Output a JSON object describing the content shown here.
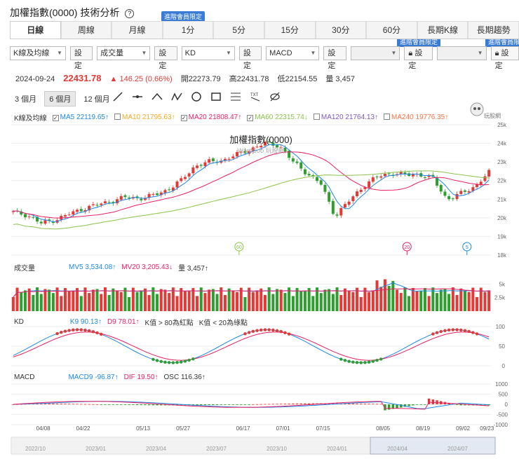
{
  "header": {
    "title": "加權指數(0000) 技術分析",
    "help_icon": "?",
    "member_badge": "進階會員限定"
  },
  "tabs": [
    {
      "label": "日線",
      "active": true
    },
    {
      "label": "周線"
    },
    {
      "label": "月線"
    },
    {
      "label": "1分"
    },
    {
      "label": "5分"
    },
    {
      "label": "15分"
    },
    {
      "label": "30分"
    },
    {
      "label": "60分"
    },
    {
      "label": "長期K線"
    },
    {
      "label": "長期趨勢"
    }
  ],
  "controls": [
    {
      "select": "K線及均線",
      "button": "設定"
    },
    {
      "select": "成交量",
      "button": "設定"
    },
    {
      "select": "KD",
      "button": "設定"
    },
    {
      "select": "MACD",
      "button": "設定"
    },
    {
      "select": "",
      "button": "設定",
      "locked": true
    },
    {
      "select": "",
      "button": "設定",
      "locked": true
    }
  ],
  "quote": {
    "date": "2024-09-24",
    "price": "22431.78",
    "change": "▲ 146.25 (0.66%)",
    "open_label": "開",
    "open": "22273.79",
    "high_label": "高",
    "high": "22431.78",
    "low_label": "低",
    "low": "22154.55",
    "vol_label": "量",
    "vol": "3,457"
  },
  "ranges": [
    "3 個月",
    "6 個月",
    "12 個月"
  ],
  "tool_icons": [
    "line-tool-icon",
    "hline-tool-icon",
    "angle-tool-icon",
    "zigzag-tool-icon",
    "circle-tool-icon",
    "rect-tool-icon",
    "fib-tool-icon",
    "text-tool-icon",
    "hide-tool-icon"
  ],
  "text_tool": "TXT",
  "ma_legend": {
    "title": "K線及均線",
    "items": [
      {
        "label": "MA5",
        "value": "22119.65↑",
        "color": "#1e88e5",
        "checked": true
      },
      {
        "label": "MA10",
        "value": "21795.63↑",
        "color": "#f9a825",
        "checked": false
      },
      {
        "label": "MA20",
        "value": "21808.47↑",
        "color": "#e91e63",
        "checked": true
      },
      {
        "label": "MA60",
        "value": "22315.74↓",
        "color": "#8bc34a",
        "checked": true
      },
      {
        "label": "MA120",
        "value": "21764.13↑",
        "color": "#7e57c2",
        "checked": false
      },
      {
        "label": "MA240",
        "value": "19776.35↑",
        "color": "#ff7043",
        "checked": false
      }
    ]
  },
  "chart_title": "加權指數(0000)",
  "chart_watermark": "WantGoo 玩股網",
  "logo_text": "玩股網",
  "vol_legend": {
    "title": "成交量",
    "mv5": "MV5 3,534.08↑",
    "mv20": "MV20 3,205.43↓",
    "vol": "量 3,457↑"
  },
  "kd_legend": {
    "title": "KD",
    "k": "K9 90.13↑",
    "d": "D9 78.01↑",
    "note1": "K值 > 80為紅點",
    "note2": "K值 < 20為綠點"
  },
  "macd_legend": {
    "title": "MACD",
    "macd": "MACD9 -96.87↑",
    "dif": "DIF 19.50↑",
    "osc": "OSC 116.36↑"
  },
  "colors": {
    "up": "#e53935",
    "down": "#2e9e2e",
    "ma5": "#1e88e5",
    "ma20": "#e91e63",
    "ma60": "#8bc34a",
    "badge": "#3a7bd5"
  },
  "chart_data": [
    {
      "type": "candlestick",
      "title": "加權指數(0000)",
      "x_ticks": [
        "04/08",
        "04/22",
        "05/13",
        "05/27",
        "06/17",
        "07/01",
        "07/15",
        "08/05",
        "08/19",
        "09/02",
        "09/23"
      ],
      "y_ticks": [
        "25k",
        "24k",
        "23k",
        "22k",
        "21k",
        "20k",
        "19k",
        "18k"
      ],
      "ylim": [
        18000,
        25000
      ],
      "close_path": [
        20300,
        20150,
        19700,
        19900,
        20200,
        20500,
        20700,
        20900,
        21100,
        21050,
        21200,
        21500,
        22000,
        22800,
        23000,
        23100,
        23400,
        23700,
        24000,
        23900,
        23000,
        22400,
        21800,
        20100,
        20900,
        21700,
        22200,
        22400,
        22300,
        22350,
        22100,
        21000,
        21300,
        21700,
        22430
      ],
      "markers": [
        "60",
        "20",
        "5"
      ]
    },
    {
      "type": "bar",
      "title": "成交量",
      "y_ticks": [
        "5k",
        "2.5k"
      ],
      "ylim": [
        0,
        7000
      ]
    },
    {
      "type": "line",
      "title": "KD",
      "y_ticks": [
        "100",
        "50",
        "0"
      ],
      "ylim": [
        0,
        100
      ]
    },
    {
      "type": "bar",
      "title": "MACD",
      "y_ticks": [
        "1000",
        "500",
        "0",
        "-500",
        "-1000"
      ],
      "ylim": [
        -1000,
        1000
      ]
    }
  ],
  "navigator_ticks": [
    "2022/10",
    "2023/01",
    "2023/04",
    "2023/07",
    "2023/10",
    "2024/01",
    "2024/04",
    "2024/07"
  ]
}
